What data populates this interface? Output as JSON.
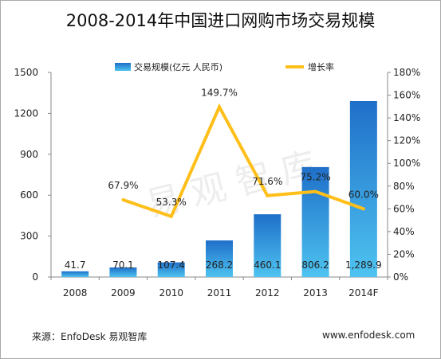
{
  "title": "2008-2014年中国进口网购市场交易规模",
  "footer": {
    "source": "来源：EnfoDesk 易观智库",
    "url": "www.enfodesk.com"
  },
  "watermark": "易观智库",
  "colors": {
    "bar_top": "#1f6fc9",
    "bar_bottom": "#4ec3f0",
    "line": "#ffbf1a",
    "axis": "#888888",
    "grid": "#e3e3e3"
  },
  "chart_data": {
    "type": "bar",
    "categories": [
      "2008",
      "2009",
      "2010",
      "2011",
      "2012",
      "2013",
      "2014F"
    ],
    "series": [
      {
        "name": "交易规模(亿元 人民币)",
        "type": "bar",
        "axis": "left",
        "values": [
          41.7,
          70.1,
          107.4,
          268.2,
          460.1,
          806.2,
          1289.9
        ],
        "labels": [
          "41.7",
          "70.1",
          "107.4",
          "268.2",
          "460.1",
          "806.2",
          "1,289.9"
        ]
      },
      {
        "name": "增长率",
        "type": "line",
        "axis": "right",
        "values": [
          null,
          67.9,
          53.3,
          149.7,
          71.6,
          75.2,
          60.0
        ],
        "labels": [
          "",
          "67.9%",
          "53.3%",
          "149.7%",
          "71.6%",
          "75.2%",
          "60.0%"
        ]
      }
    ],
    "y_left": {
      "min": 0,
      "max": 1500,
      "ticks": [
        0,
        300,
        600,
        900,
        1200,
        1500
      ],
      "tick_labels": [
        "0",
        "300",
        "600",
        "900",
        "1200",
        "1500"
      ]
    },
    "y_right": {
      "min": 0,
      "max": 180,
      "ticks": [
        0,
        20,
        40,
        60,
        80,
        100,
        120,
        140,
        160,
        180
      ],
      "tick_labels": [
        "0%",
        "20%",
        "40%",
        "60%",
        "80%",
        "100%",
        "120%",
        "140%",
        "160%",
        "180%"
      ]
    },
    "grid": false,
    "legend_position": "top-center"
  }
}
